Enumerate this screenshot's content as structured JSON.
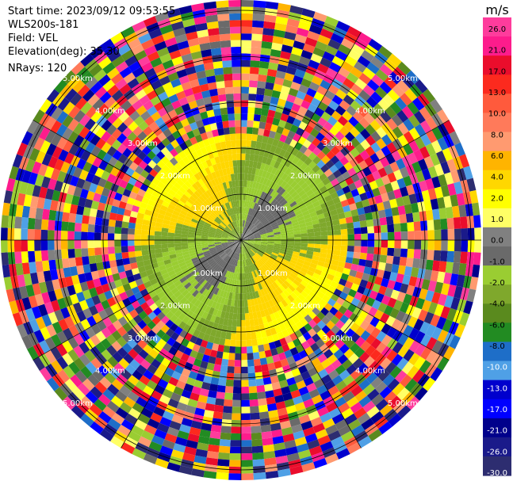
{
  "header": {
    "start_time": "Start time: 2023/09/12 09:53:55",
    "station": "WLS200s-181",
    "field": "Field: VEL",
    "elevation": "Elevation(deg): 35.30",
    "nrays": "NRays: 120"
  },
  "chart_data": {
    "type": "heatmap",
    "projection": "polar-ppi",
    "field": "VEL",
    "elevation_deg": 35.3,
    "n_rays": 120,
    "range_ring_labels": [
      "1.00km",
      "2.00km",
      "3.00km",
      "4.00km",
      "5.00km"
    ],
    "colorbar": {
      "unit": "m/s",
      "ticks": [
        "26.0",
        "21.0",
        "17.0",
        "13.0",
        "10.0",
        "8.0",
        "6.0",
        "4.0",
        "2.0",
        "1.0",
        "0.0",
        "-1.0",
        "-2.0",
        "-4.0",
        "-6.0",
        "-8.0",
        "-10.0",
        "-13.0",
        "-17.0",
        "-21.0",
        "-26.0",
        "-30.0"
      ],
      "colors": [
        "#fe3c9c",
        "#fd1c8c",
        "#ea0d2c",
        "#fc2a1e",
        "#ff5a3c",
        "#ff7a5a",
        "#ff9a70",
        "#ffb400",
        "#ffd700",
        "#ffff00",
        "#ffff66",
        "#808080",
        "#6a6a6a",
        "#9acd32",
        "#7fa82c",
        "#5a8a1e",
        "#228b22",
        "#1e6ec8",
        "#4fa0e6",
        "#0000cd",
        "#0000ff",
        "#00008b",
        "#1a1a8a",
        "#2d2d70"
      ]
    }
  }
}
